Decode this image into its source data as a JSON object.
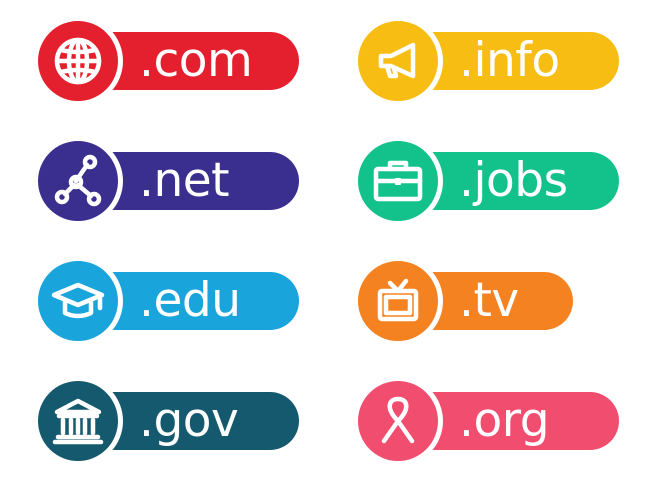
{
  "badges": [
    {
      "id": "com",
      "label": ".com",
      "icon": "globe-icon",
      "color": "#e4202e"
    },
    {
      "id": "net",
      "label": ".net",
      "icon": "network-icon",
      "color": "#3a2e8f"
    },
    {
      "id": "edu",
      "label": ".edu",
      "icon": "graduation-cap-icon",
      "color": "#1aa4dc"
    },
    {
      "id": "gov",
      "label": ".gov",
      "icon": "government-building-icon",
      "color": "#14596e"
    },
    {
      "id": "info",
      "label": ".info",
      "icon": "megaphone-icon",
      "color": "#f7bd13"
    },
    {
      "id": "jobs",
      "label": ".jobs",
      "icon": "briefcase-icon",
      "color": "#13c28a"
    },
    {
      "id": "tv",
      "label": ".tv",
      "icon": "television-icon",
      "color": "#f58220"
    },
    {
      "id": "org",
      "label": ".org",
      "icon": "awareness-ribbon-icon",
      "color": "#f14d6e"
    }
  ]
}
